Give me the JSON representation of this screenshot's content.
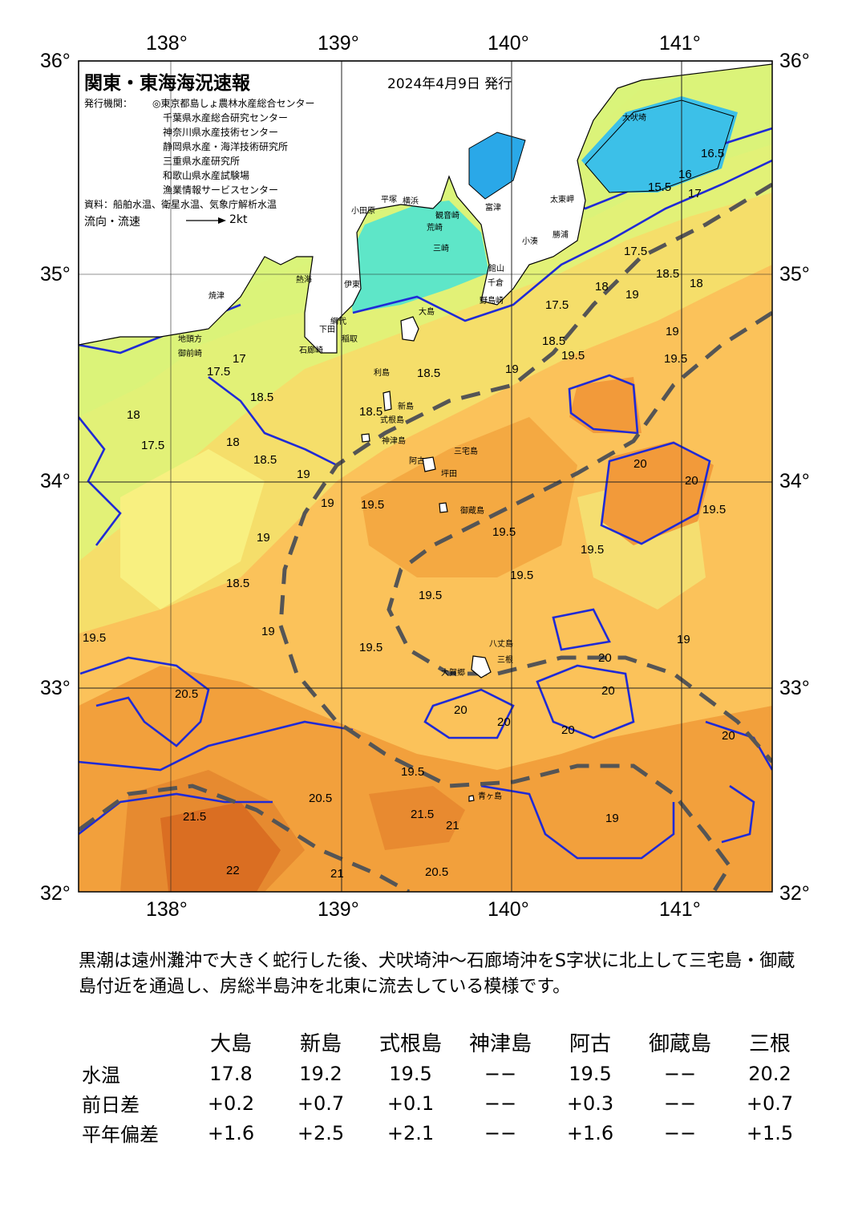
{
  "map": {
    "title": "関東・東海海況速報",
    "issue_date": "2024年4月9日 発行",
    "issuer_label": "発行機関：",
    "issuers": [
      "◎東京都島しょ農林水産総合センター",
      "千葉県水産総合研究センター",
      "神奈川県水産技術センター",
      "静岡県水産・海洋技術研究所",
      "三重県水産研究所",
      "和歌山県水産試験場",
      "漁業情報サービスセンター"
    ],
    "data_source": "資料：船舶水温、衛星水温、気象庁解析水温",
    "flow_legend": "流向・流速",
    "flow_scale": "2kt",
    "lon_labels": [
      "138°",
      "139°",
      "140°",
      "141°"
    ],
    "lat_labels": [
      "36°",
      "35°",
      "34°",
      "33°",
      "32°"
    ],
    "place_names": [
      "大吠埼",
      "太東岬",
      "勝浦",
      "小湊",
      "館山",
      "千倉",
      "野島崎",
      "富津",
      "平塚",
      "横浜",
      "観音崎",
      "荒崎",
      "三崎",
      "小田原",
      "熱海",
      "伊東",
      "網代",
      "下田",
      "石廊崎",
      "稲取",
      "焼津",
      "御前崎",
      "地頭方",
      "大島",
      "利島",
      "新島",
      "式根島",
      "神津島",
      "三宅島",
      "坪田",
      "阿古",
      "御蔵島",
      "八丈島",
      "三根",
      "大賀郷",
      "青ヶ島"
    ],
    "isotherm_labels": [
      "15.5",
      "16",
      "16.5",
      "17",
      "17",
      "17.5",
      "17.5",
      "17.5",
      "17.5",
      "18",
      "18",
      "18",
      "18",
      "18.5",
      "18.5",
      "18.5",
      "18.5",
      "18.5",
      "18.5",
      "18.5",
      "19",
      "19",
      "19",
      "19",
      "19",
      "19",
      "19",
      "19",
      "19",
      "19.5",
      "19.5",
      "19.5",
      "19.5",
      "19.5",
      "19.5",
      "19.5",
      "19.5",
      "19.5",
      "19.5",
      "19.5",
      "20",
      "20",
      "20",
      "20",
      "20",
      "20",
      "20",
      "20",
      "20.5",
      "20.5",
      "20.5",
      "21",
      "21",
      "21.5",
      "21.5",
      "22"
    ]
  },
  "summary": "黒潮は遠州灘沖で大きく蛇行した後、犬吠埼沖～石廊埼沖をS字状に北上して三宅島・御蔵島付近を通過し、房総半島沖を北東に流去している模様です。",
  "table": {
    "columns": [
      "大島",
      "新島",
      "式根島",
      "神津島",
      "阿古",
      "御蔵島",
      "三根"
    ],
    "rows": [
      {
        "label": "水温",
        "values": [
          "17.8",
          "19.2",
          "19.5",
          "−−",
          "19.5",
          "−−",
          "20.2"
        ]
      },
      {
        "label": "前日差",
        "values": [
          "+0.2",
          "+0.7",
          "+0.1",
          "−−",
          "+0.3",
          "−−",
          "+0.7"
        ]
      },
      {
        "label": "平年偏差",
        "values": [
          "+1.6",
          "+2.5",
          "+2.1",
          "−−",
          "+1.6",
          "−−",
          "+1.5"
        ]
      }
    ]
  },
  "colors": {
    "land": "#ffffff",
    "coast": "#000000",
    "isotherm": "#1f2ad6",
    "kuroshio_axis": "#555555",
    "grid": "#222222"
  }
}
